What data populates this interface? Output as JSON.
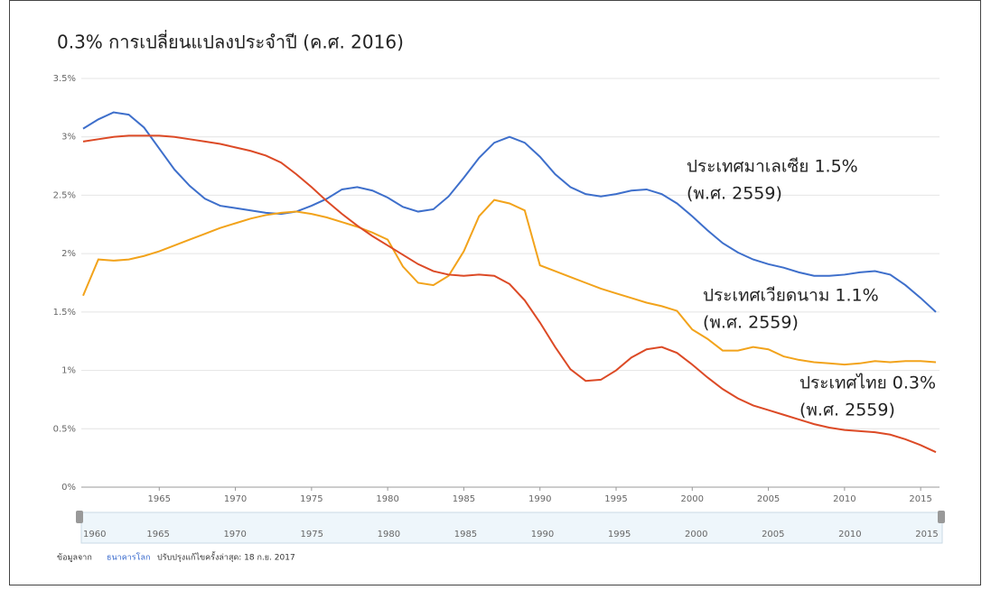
{
  "chart_data": {
    "type": "line",
    "title": "0.3% การเปลี่ยนแปลงประจำปี (ค.ศ. 2016)",
    "x": [
      1960,
      1961,
      1962,
      1963,
      1964,
      1965,
      1966,
      1967,
      1968,
      1969,
      1970,
      1971,
      1972,
      1973,
      1974,
      1975,
      1976,
      1977,
      1978,
      1979,
      1980,
      1981,
      1982,
      1983,
      1984,
      1985,
      1986,
      1987,
      1988,
      1989,
      1990,
      1991,
      1992,
      1993,
      1994,
      1995,
      1996,
      1997,
      1998,
      1999,
      2000,
      2001,
      2002,
      2003,
      2004,
      2005,
      2006,
      2007,
      2008,
      2009,
      2010,
      2011,
      2012,
      2013,
      2014,
      2015,
      2016
    ],
    "series": [
      {
        "color": "#3e6fcb",
        "values": [
          3.07,
          3.15,
          3.21,
          3.19,
          3.08,
          2.9,
          2.72,
          2.58,
          2.47,
          2.41,
          2.39,
          2.37,
          2.35,
          2.34,
          2.36,
          2.41,
          2.47,
          2.55,
          2.57,
          2.54,
          2.48,
          2.4,
          2.36,
          2.38,
          2.49,
          2.65,
          2.82,
          2.95,
          3.0,
          2.95,
          2.83,
          2.68,
          2.57,
          2.51,
          2.49,
          2.51,
          2.54,
          2.55,
          2.51,
          2.43,
          2.32,
          2.2,
          2.09,
          2.01,
          1.95,
          1.91,
          1.88,
          1.84,
          1.81,
          1.81,
          1.82,
          1.84,
          1.85,
          1.82,
          1.73,
          1.62,
          1.5
        ]
      },
      {
        "color": "#f2a31b",
        "values": [
          1.64,
          1.95,
          1.94,
          1.95,
          1.98,
          2.02,
          2.07,
          2.12,
          2.17,
          2.22,
          2.26,
          2.3,
          2.33,
          2.35,
          2.36,
          2.34,
          2.31,
          2.27,
          2.23,
          2.18,
          2.12,
          1.89,
          1.75,
          1.73,
          1.81,
          2.02,
          2.32,
          2.46,
          2.43,
          2.37,
          1.9,
          1.85,
          1.8,
          1.75,
          1.7,
          1.66,
          1.62,
          1.58,
          1.55,
          1.51,
          1.35,
          1.27,
          1.17,
          1.17,
          1.2,
          1.18,
          1.12,
          1.09,
          1.07,
          1.06,
          1.05,
          1.06,
          1.08,
          1.07,
          1.08,
          1.08,
          1.07
        ]
      },
      {
        "color": "#dc4a26",
        "values": [
          2.96,
          2.98,
          3.0,
          3.01,
          3.01,
          3.01,
          3.0,
          2.98,
          2.96,
          2.94,
          2.91,
          2.88,
          2.84,
          2.78,
          2.68,
          2.57,
          2.45,
          2.34,
          2.24,
          2.15,
          2.07,
          1.99,
          1.91,
          1.85,
          1.82,
          1.81,
          1.82,
          1.81,
          1.74,
          1.6,
          1.41,
          1.2,
          1.01,
          0.91,
          0.92,
          1.0,
          1.11,
          1.18,
          1.2,
          1.15,
          1.05,
          0.94,
          0.84,
          0.76,
          0.7,
          0.66,
          0.62,
          0.58,
          0.54,
          0.51,
          0.49,
          0.48,
          0.47,
          0.45,
          0.41,
          0.36,
          0.3
        ]
      }
    ],
    "xlim": [
      1960,
      2016
    ],
    "xticks": [
      1965,
      1970,
      1975,
      1980,
      1985,
      1990,
      1995,
      2000,
      2005,
      2010,
      2015
    ],
    "ylim": [
      0,
      3.5
    ],
    "yticks": [
      {
        "value": 0,
        "label": "0%"
      },
      {
        "value": 0.5,
        "label": "0.5%"
      },
      {
        "value": 1,
        "label": "1%"
      },
      {
        "value": 1.5,
        "label": "1.5%"
      },
      {
        "value": 2,
        "label": "2%"
      },
      {
        "value": 2.5,
        "label": "2.5%"
      },
      {
        "value": 3,
        "label": "3%"
      },
      {
        "value": 3.5,
        "label": "3.5%"
      }
    ],
    "grid": true,
    "annotations": [
      {
        "lines": [
          "ประเทศมาเลเซีย 1.5%",
          "(พ.ศ. 2559)"
        ]
      },
      {
        "lines": [
          "ประเทศเวียดนาม 1.1%",
          "(พ.ศ. 2559)"
        ]
      },
      {
        "lines": [
          "ประเทศไทย 0.3%",
          "(พ.ศ. 2559)"
        ]
      }
    ],
    "timeline_ticks": [
      1960,
      1965,
      1970,
      1975,
      1980,
      1985,
      1990,
      1995,
      2000,
      2005,
      2010,
      2015
    ],
    "source_prefix": "ข้อมูลจาก",
    "source": "ธนาคารโลก",
    "updated": "ปรับปรุงแก้ไขครั้งล่าสุด: 18 ก.ย. 2017"
  }
}
